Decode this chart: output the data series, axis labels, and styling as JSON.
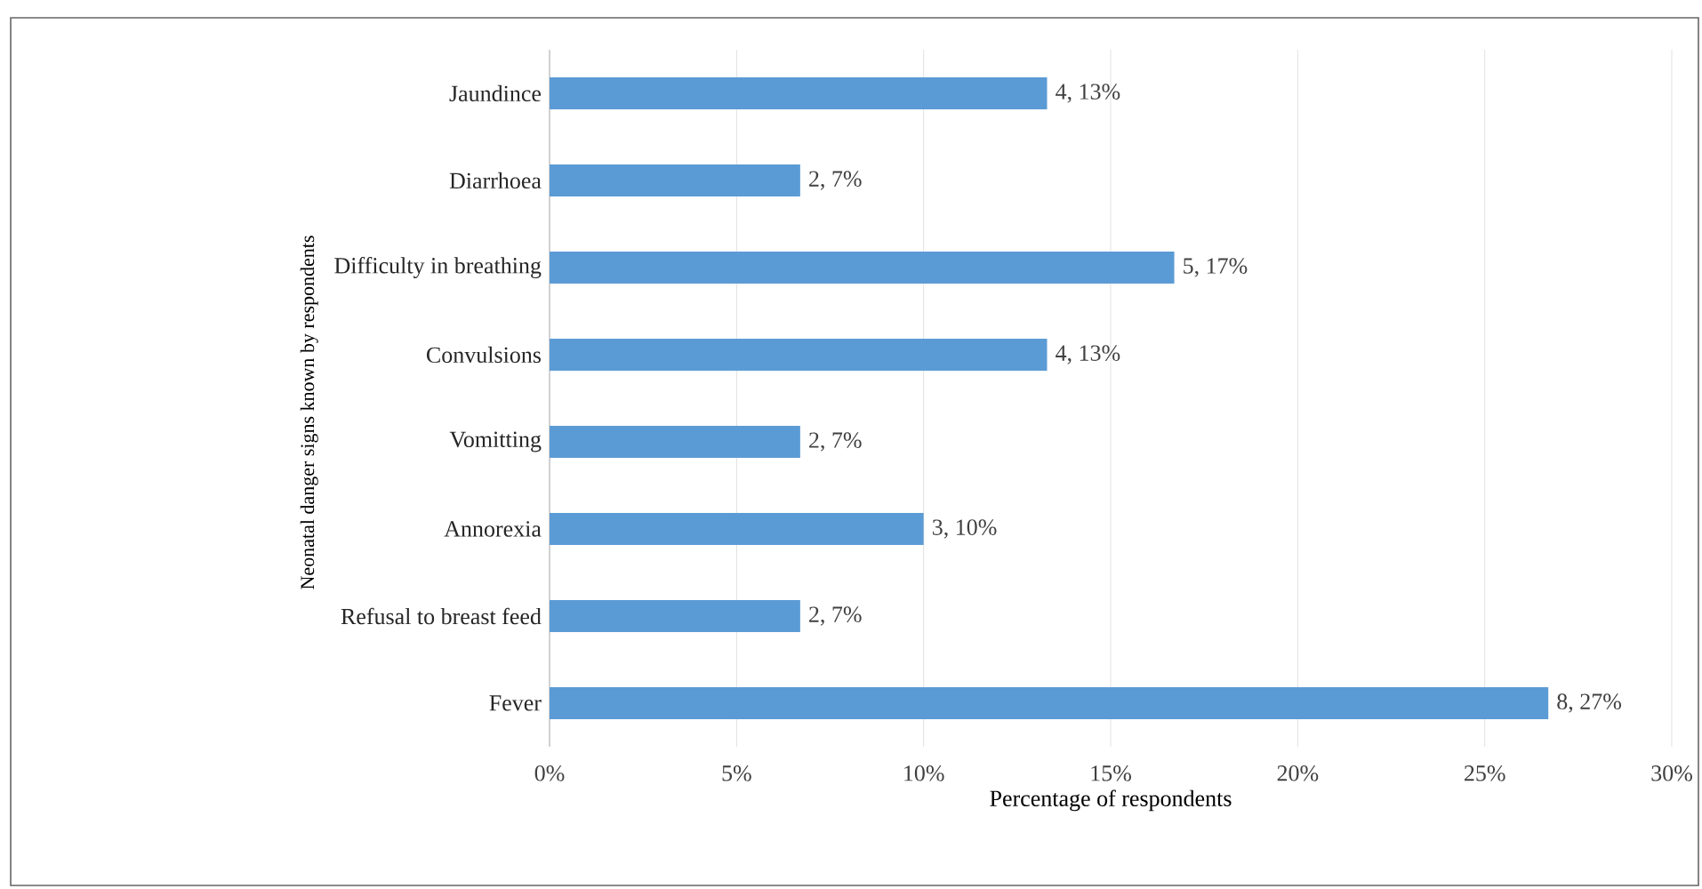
{
  "chart_data": {
    "type": "bar",
    "orientation": "horizontal",
    "ylabel": "Neonatal danger signs known by respondents",
    "xlabel": "Percentage of respondents",
    "categories": [
      "Jaundince",
      "Diarrhoea",
      "Difficulty in breathing",
      "Convulsions",
      "Vomitting",
      "Annorexia",
      "Refusal to breast feed",
      "Fever"
    ],
    "values": [
      13.3,
      6.7,
      16.7,
      13.3,
      6.7,
      10,
      6.7,
      26.7
    ],
    "value_labels": [
      "4, 13%",
      "2, 7%",
      "5, 17%",
      "4, 13%",
      "2, 7%",
      "3, 10%",
      "2, 7%",
      "8, 27%"
    ],
    "color": "#5b9bd5",
    "xlim": [
      0,
      30
    ],
    "xticks": [
      {
        "value": 0,
        "label": "0%"
      },
      {
        "value": 5,
        "label": "5%"
      },
      {
        "value": 10,
        "label": "10%"
      },
      {
        "value": 15,
        "label": "15%"
      },
      {
        "value": 20,
        "label": "20%"
      },
      {
        "value": 25,
        "label": "25%"
      },
      {
        "value": 30,
        "label": "30%"
      }
    ],
    "grid": "x"
  }
}
